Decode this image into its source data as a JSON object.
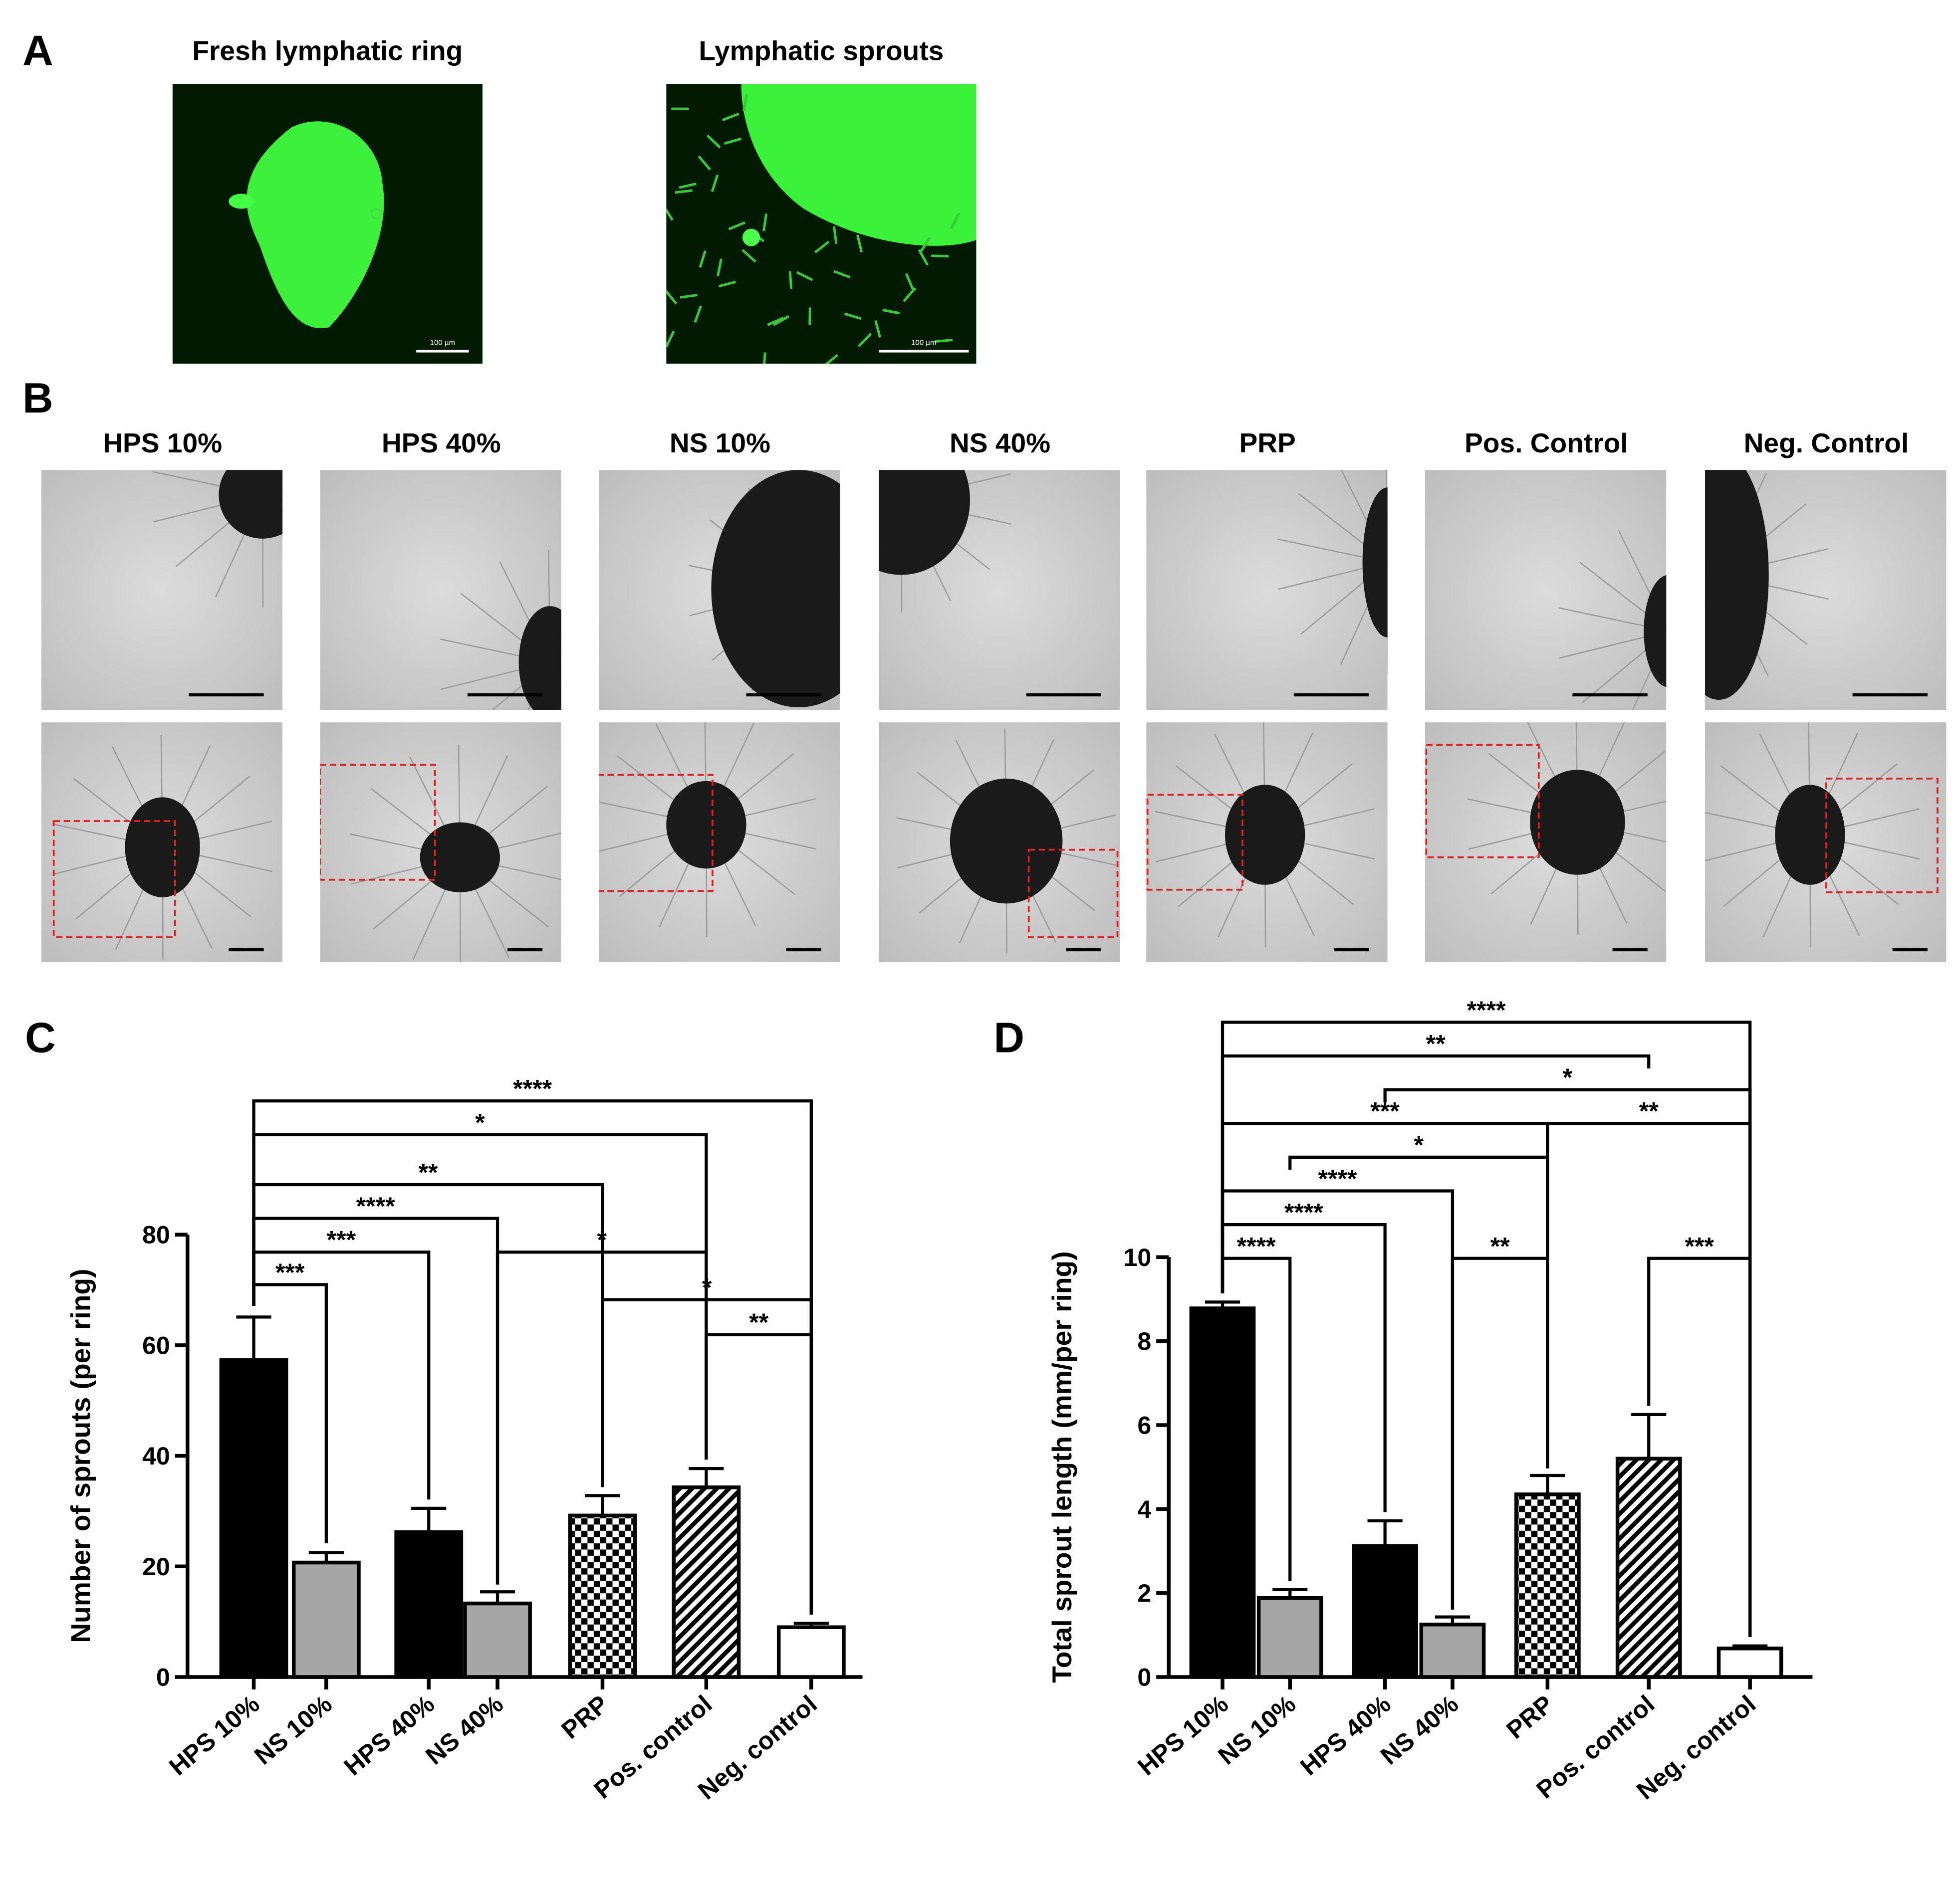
{
  "panel_labels": [
    "A",
    "B",
    "C",
    "D"
  ],
  "panel_a": {
    "images": [
      {
        "title": "Fresh lymphatic ring",
        "scale_bar": "100 µm"
      },
      {
        "title": "Lymphatic sprouts",
        "scale_bar": "100 µm"
      }
    ]
  },
  "panel_b": {
    "conditions": [
      "HPS 10%",
      "HPS 40%",
      "NS 10%",
      "NS 40%",
      "PRP",
      "Pos. Control",
      "Neg. Control"
    ]
  },
  "chart_data": [
    {
      "type": "bar",
      "ylabel": "Number of sprouts (per ring)",
      "categories": [
        "HPS 10%",
        "NS 10%",
        "HPS 40%",
        "NS 40%",
        "PRP",
        "Pos. control",
        "Neg. control"
      ],
      "values": [
        57.3,
        20.7,
        26.2,
        13.3,
        29.2,
        34.3,
        9.0
      ],
      "errors": [
        7.8,
        1.8,
        4.3,
        2.1,
        3.6,
        3.4,
        0.7
      ],
      "colors": [
        "#000000",
        "#a6a6a6",
        "#000000",
        "#a6a6a6",
        "#000000",
        "#000000",
        "#ffffff"
      ],
      "patterns": [
        "solid",
        "solid",
        "solid",
        "solid",
        "checkerboard",
        "hatch",
        "solid"
      ],
      "ylim": [
        0,
        80
      ],
      "yticks": [
        0,
        20,
        40,
        60,
        80
      ],
      "comparisons": [
        {
          "groups": [
            0,
            6
          ],
          "label": "****"
        },
        {
          "groups": [
            0,
            5
          ],
          "label": "*"
        },
        {
          "groups": [
            0,
            4
          ],
          "label": "**"
        },
        {
          "groups": [
            0,
            3
          ],
          "label": "****"
        },
        {
          "groups": [
            0,
            2
          ],
          "label": "***"
        },
        {
          "groups": [
            0,
            1
          ],
          "label": "***"
        },
        {
          "groups": [
            3,
            5
          ],
          "label": "*"
        },
        {
          "groups": [
            4,
            6
          ],
          "label": "*"
        },
        {
          "groups": [
            5,
            6
          ],
          "label": "**"
        }
      ]
    },
    {
      "type": "bar",
      "ylabel": "Total sprout length (mm/per ring)",
      "categories": [
        "HPS 10%",
        "NS 10%",
        "HPS 40%",
        "NS 40%",
        "PRP",
        "Pos. control",
        "Neg. control"
      ],
      "values": [
        8.78,
        1.88,
        3.12,
        1.25,
        4.35,
        5.2,
        0.68
      ],
      "errors": [
        0.15,
        0.2,
        0.6,
        0.18,
        0.45,
        1.05,
        0.06
      ],
      "colors": [
        "#000000",
        "#a6a6a6",
        "#000000",
        "#a6a6a6",
        "#000000",
        "#000000",
        "#ffffff"
      ],
      "patterns": [
        "solid",
        "solid",
        "solid",
        "solid",
        "checkerboard",
        "hatch",
        "solid"
      ],
      "ylim": [
        0,
        10
      ],
      "yticks": [
        0,
        2,
        4,
        6,
        8,
        10
      ],
      "comparisons": [
        {
          "groups": [
            0,
            6
          ],
          "label": "****"
        },
        {
          "groups": [
            0,
            5
          ],
          "label": "**"
        },
        {
          "groups": [
            2,
            6
          ],
          "label": "*"
        },
        {
          "groups": [
            0,
            4
          ],
          "label": "***"
        },
        {
          "groups": [
            4,
            6
          ],
          "label": "**"
        },
        {
          "groups": [
            1,
            4
          ],
          "label": "*"
        },
        {
          "groups": [
            0,
            3
          ],
          "label": "****"
        },
        {
          "groups": [
            0,
            2
          ],
          "label": "****"
        },
        {
          "groups": [
            0,
            1
          ],
          "label": "****"
        },
        {
          "groups": [
            3,
            4
          ],
          "label": "**"
        },
        {
          "groups": [
            5,
            6
          ],
          "label": "***"
        }
      ]
    }
  ]
}
